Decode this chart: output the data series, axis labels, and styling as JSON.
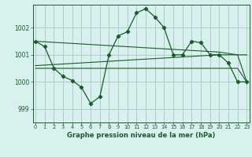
{
  "title": "Graphe pression niveau de la mer (hPa)",
  "background_color": "#d8f0ee",
  "grid_color": "#b0ccca",
  "line_color": "#1a5c2a",
  "x_ticks": [
    0,
    1,
    2,
    3,
    4,
    5,
    6,
    7,
    8,
    9,
    10,
    11,
    12,
    13,
    14,
    15,
    16,
    17,
    18,
    19,
    20,
    21,
    22,
    23
  ],
  "y_ticks": [
    999,
    1000,
    1001,
    1002
  ],
  "ylim": [
    998.5,
    1002.85
  ],
  "xlim": [
    -0.3,
    23.3
  ],
  "series1": [
    1001.5,
    1001.3,
    1000.5,
    1000.2,
    1000.05,
    999.8,
    999.2,
    999.45,
    1001.0,
    1001.7,
    1001.85,
    1002.55,
    1002.7,
    1002.4,
    1002.0,
    1001.0,
    1001.0,
    1001.5,
    1001.45,
    1001.0,
    1001.0,
    1000.7,
    1000.0,
    1000.0
  ],
  "series_min": [
    1000.5,
    1000.5,
    1000.5,
    1000.5,
    1000.5,
    1000.5,
    1000.5,
    1000.5,
    1000.5,
    1000.5,
    1000.5,
    1000.5,
    1000.5,
    1000.5,
    1000.5,
    1000.5,
    1000.5,
    1000.5,
    1000.5,
    1000.5,
    1000.5,
    1000.5,
    1000.5,
    1000.0
  ],
  "series_avg": [
    1001.5,
    1001.48,
    1001.46,
    1001.44,
    1001.42,
    1001.4,
    1001.38,
    1001.36,
    1001.34,
    1001.32,
    1001.3,
    1001.28,
    1001.26,
    1001.24,
    1001.22,
    1001.2,
    1001.18,
    1001.16,
    1001.14,
    1001.12,
    1001.1,
    1001.05,
    1001.0,
    1000.0
  ],
  "series_trend": [
    1000.6,
    1000.62,
    1000.64,
    1000.66,
    1000.68,
    1000.7,
    1000.72,
    1000.74,
    1000.76,
    1000.78,
    1000.8,
    1000.82,
    1000.84,
    1000.86,
    1000.88,
    1000.9,
    1000.92,
    1000.94,
    1000.96,
    1000.98,
    1001.0,
    1001.0,
    1001.0,
    1001.0
  ]
}
